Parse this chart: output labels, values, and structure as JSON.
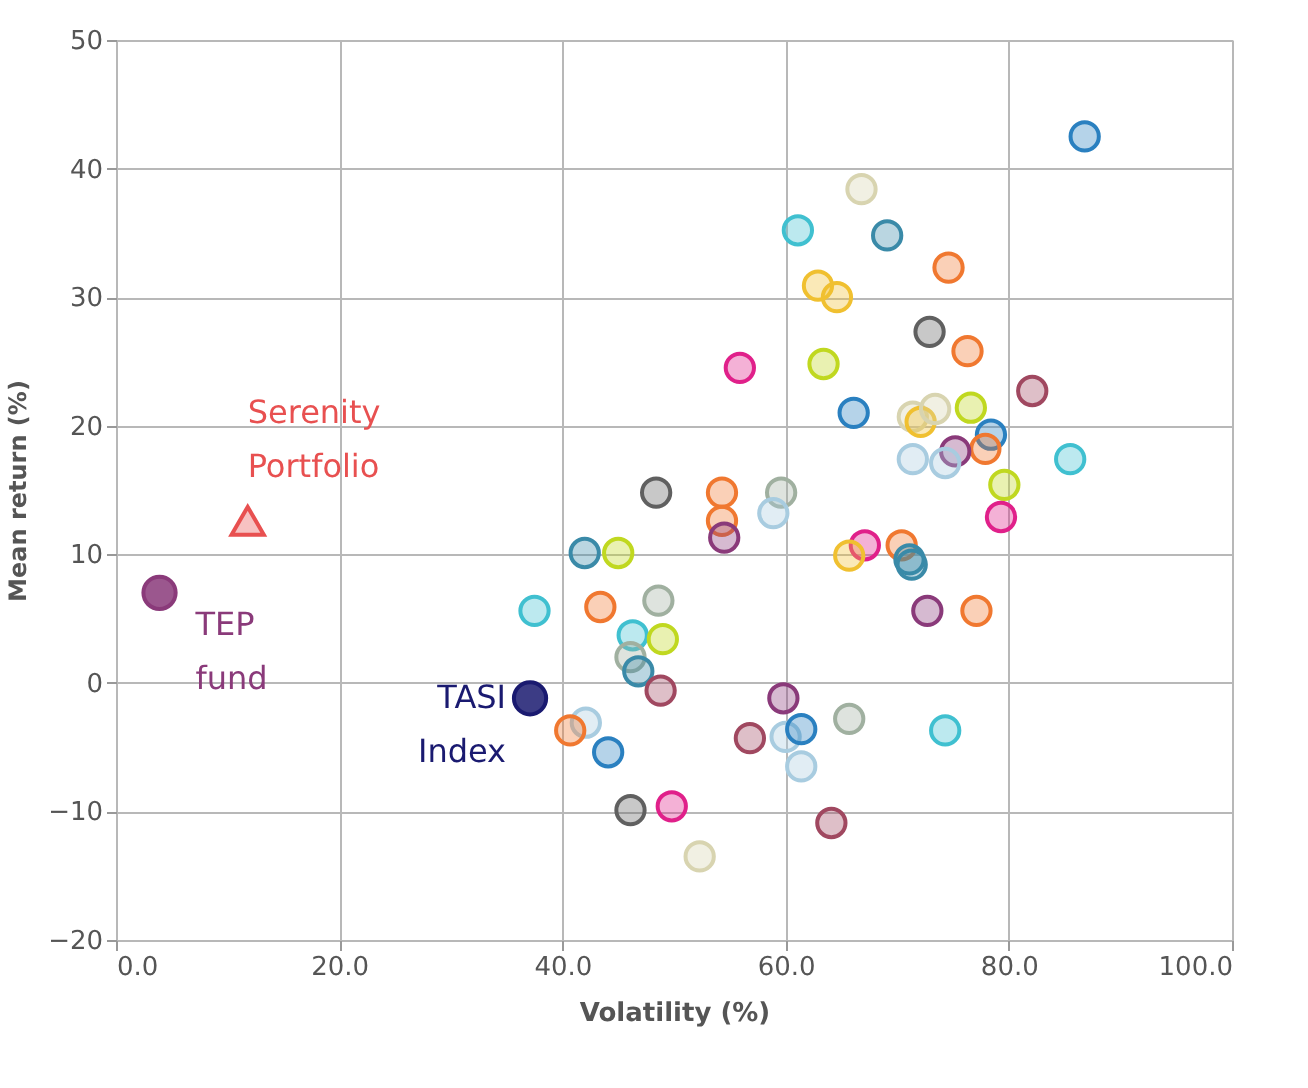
{
  "chart_data": {
    "type": "scatter",
    "xlabel": "Volatility (%)",
    "ylabel": "Mean return (%)",
    "xlim": [
      0,
      100
    ],
    "ylim": [
      -20,
      50
    ],
    "xticks": [
      {
        "value": 0,
        "label": "0.0"
      },
      {
        "value": 20,
        "label": "20.0"
      },
      {
        "value": 40,
        "label": "40.0"
      },
      {
        "value": 60,
        "label": "60.0"
      },
      {
        "value": 80,
        "label": "80.0"
      },
      {
        "value": 100,
        "label": "100.0"
      }
    ],
    "yticks": [
      -20,
      -10,
      0,
      10,
      20,
      30,
      40,
      50
    ],
    "grid": true,
    "legend": false,
    "series": [
      {
        "marker": "circle",
        "x": [
          86.8,
          66.8,
          61.1,
          69.1,
          74.6,
          62.9,
          64.6,
          72.9,
          76.3,
          55.9,
          63.4,
          66.1,
          82.1,
          76.6,
          71.4,
          72.1,
          73.4,
          78.4,
          77.9,
          75.2,
          71.4,
          74.3,
          85.5,
          79.6,
          48.4,
          54.3,
          59.6,
          58.9,
          54.3,
          54.5,
          79.3,
          42,
          45,
          67.1,
          70.4,
          65.7,
          71.1,
          71.3,
          72.7,
          77.1,
          37.5,
          43.4,
          48.6,
          46.3,
          49,
          46.1,
          46.8,
          48.8,
          59.8,
          65.7,
          42.1,
          40.7,
          56.8,
          60,
          61.4,
          61.4,
          44.1,
          74.3,
          46.1,
          49.8,
          64.1,
          52.3
        ],
        "values": [
          42.5,
          38.4,
          35.2,
          34.8,
          32.3,
          30.9,
          30,
          27.3,
          25.8,
          24.5,
          24.8,
          21,
          22.7,
          21.4,
          20.7,
          20.3,
          21.3,
          19.3,
          18.2,
          18,
          17.4,
          17.1,
          17.4,
          15.4,
          14.8,
          14.8,
          14.8,
          13.2,
          12.6,
          11.3,
          12.9,
          10.1,
          10.1,
          10.7,
          10.7,
          9.9,
          9.6,
          9.2,
          5.6,
          5.6,
          5.6,
          5.9,
          6.4,
          3.7,
          3.4,
          2,
          0.9,
          -0.6,
          -1.2,
          -2.8,
          -3.1,
          -3.7,
          -4.3,
          -4.2,
          -3.6,
          -6.5,
          -5.4,
          -3.7,
          -9.9,
          -9.6,
          -10.9,
          -13.5
        ],
        "colors": [
          "#2a80c0",
          "#d8d4b0",
          "#40c0d0",
          "#3a8aa8",
          "#f07830",
          "#f0c030",
          "#f0c030",
          "#606060",
          "#f07830",
          "#e0208a",
          "#c0d820",
          "#2a80c0",
          "#a04860",
          "#c0d820",
          "#d8d4b0",
          "#f0c030",
          "#d8d4b0",
          "#2a80c0",
          "#f07830",
          "#8a3a7a",
          "#a8cce0",
          "#a8cce0",
          "#40c0d0",
          "#c0d820",
          "#606060",
          "#f07830",
          "#a0b0a0",
          "#a8cce0",
          "#f07830",
          "#8a3a7a",
          "#e0208a",
          "#3a8aa8",
          "#c0d820",
          "#e0208a",
          "#f07830",
          "#f0c030",
          "#3a8aa8",
          "#3a8aa8",
          "#8a3a7a",
          "#f07830",
          "#40c0d0",
          "#f07830",
          "#a0b0a0",
          "#40c0d0",
          "#c0d820",
          "#a0b0a0",
          "#3a8aa8",
          "#a04860",
          "#8a3a7a",
          "#a0b0a0",
          "#a8cce0",
          "#f07830",
          "#a04860",
          "#a8cce0",
          "#2a80c0",
          "#a8cce0",
          "#2a80c0",
          "#40c0d0",
          "#606060",
          "#e0208a",
          "#a04860",
          "#d8d4b0"
        ]
      },
      {
        "name": "Serenity Portfolio",
        "marker": "triangle",
        "color": "#e85050",
        "x": [
          11.8
        ],
        "values": [
          12.6
        ]
      },
      {
        "name": "TEP fund",
        "marker": "circle",
        "color": "#8a3a7a",
        "x": [
          3.9
        ],
        "values": [
          7.0
        ]
      },
      {
        "name": "TASI Index",
        "marker": "circle",
        "color": "#1a1a70",
        "x": [
          37.1
        ],
        "values": [
          -1.2
        ]
      }
    ]
  }
}
